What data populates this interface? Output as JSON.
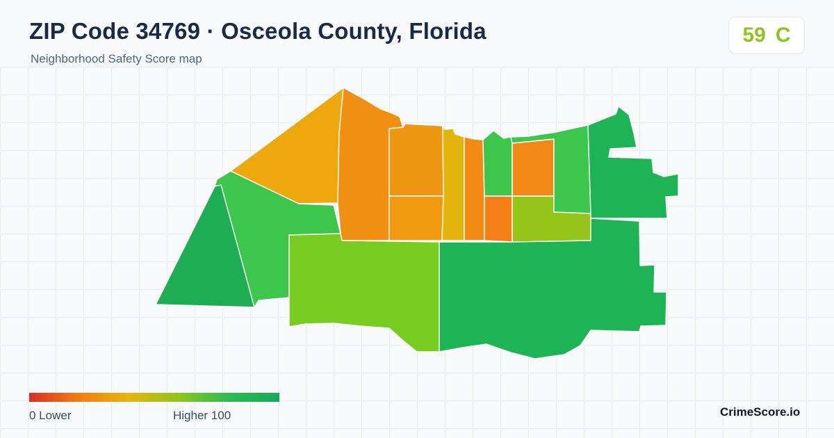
{
  "header": {
    "title": "ZIP Code 34769 · Osceola County, Florida",
    "subtitle": "Neighborhood Safety Score map"
  },
  "score_badge": {
    "score": "59",
    "grade": "C",
    "color": "#8cc51e"
  },
  "legend": {
    "min_label": "0  Lower",
    "max_label": "Higher  100",
    "colors": [
      "#d92f25",
      "#f07e16",
      "#e8b40c",
      "#8cc51e",
      "#2dbb52",
      "#19a85b"
    ]
  },
  "brand": {
    "name": "CrimeScore.io"
  },
  "map": {
    "zones": [
      {
        "id": "far-west",
        "color": "#1ead55"
      },
      {
        "id": "west",
        "color": "#3cc74c"
      },
      {
        "id": "northwest",
        "color": "#eda80e"
      },
      {
        "id": "north-central-tall",
        "color": "#f18f12"
      },
      {
        "id": "north-a-upper",
        "color": "#ef9613"
      },
      {
        "id": "north-a-lower",
        "color": "#f19a10"
      },
      {
        "id": "north-b",
        "color": "#e4b60d"
      },
      {
        "id": "north-c",
        "color": "#f18b14"
      },
      {
        "id": "center-green",
        "color": "#3cc74c"
      },
      {
        "id": "center-orange-upper",
        "color": "#f18916"
      },
      {
        "id": "center-orange-lower",
        "color": "#f57f17"
      },
      {
        "id": "center-lime",
        "color": "#95c518"
      },
      {
        "id": "east-green",
        "color": "#3cc74c"
      },
      {
        "id": "south-west",
        "color": "#76cc20"
      },
      {
        "id": "south-east",
        "color": "#1eb456"
      },
      {
        "id": "north-east",
        "color": "#1eb456"
      }
    ]
  }
}
